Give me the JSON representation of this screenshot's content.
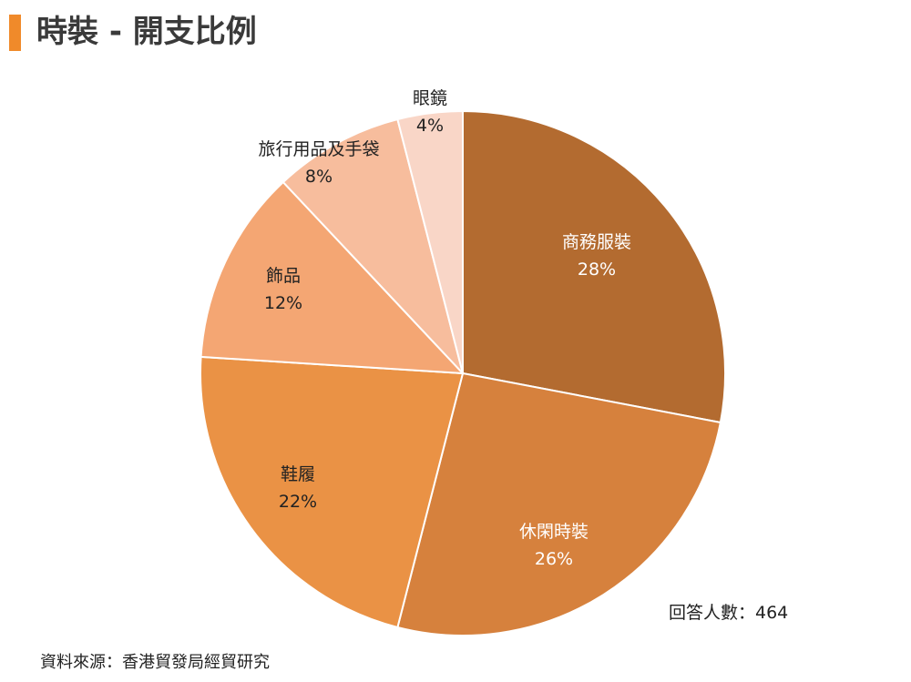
{
  "title": "時裝 - 開支比例",
  "respondents": "回答人數：464",
  "source": "資料來源：香港貿發局經貿研究",
  "accent_color": "#f08a2a",
  "chart_data": {
    "type": "pie",
    "title": "時裝 - 開支比例",
    "start_angle_deg": 0,
    "direction": "clockwise",
    "slices": [
      {
        "label": "商務服裝",
        "value": 28,
        "display": "28%",
        "color": "#b36b30",
        "text_color": "#ffffff"
      },
      {
        "label": "休閑時裝",
        "value": 26,
        "display": "26%",
        "color": "#d6813d",
        "text_color": "#ffffff"
      },
      {
        "label": "鞋履",
        "value": 22,
        "display": "22%",
        "color": "#ea9245",
        "text_color": "#222222"
      },
      {
        "label": "飾品",
        "value": 12,
        "display": "12%",
        "color": "#f4a673",
        "text_color": "#222222"
      },
      {
        "label": "旅行用品及手袋",
        "value": 8,
        "display": "8%",
        "color": "#f7bd9d",
        "text_color": "#222222"
      },
      {
        "label": "眼鏡",
        "value": 4,
        "display": "4%",
        "color": "#f9d6c7",
        "text_color": "#222222"
      }
    ]
  }
}
